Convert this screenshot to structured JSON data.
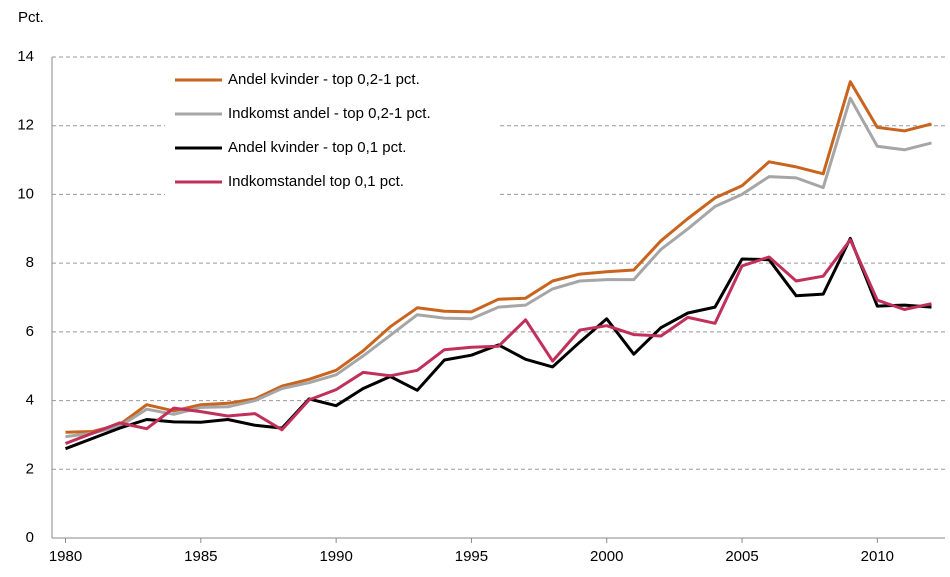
{
  "chart_data": {
    "type": "line",
    "y_label": "Pct.",
    "x": [
      1980,
      1981,
      1982,
      1983,
      1984,
      1985,
      1986,
      1987,
      1988,
      1989,
      1990,
      1991,
      1992,
      1993,
      1994,
      1995,
      1996,
      1997,
      1998,
      1999,
      2000,
      2001,
      2002,
      2003,
      2004,
      2005,
      2006,
      2007,
      2008,
      2009,
      2010,
      2011,
      2012
    ],
    "series": [
      {
        "name": "Andel kvinder - top 0,2-1 pct.",
        "color": "#c8641e",
        "values": [
          3.08,
          3.1,
          3.3,
          3.88,
          3.7,
          3.88,
          3.92,
          4.05,
          4.42,
          4.62,
          4.88,
          5.45,
          6.15,
          6.7,
          6.6,
          6.58,
          6.95,
          6.98,
          7.48,
          7.68,
          7.75,
          7.8,
          8.65,
          9.3,
          9.9,
          10.25,
          10.95,
          10.8,
          10.6,
          13.28,
          11.95,
          11.85,
          12.05
        ]
      },
      {
        "name": "Indkomst andel - top 0,2-1 pct.",
        "color": "#a6a6a6",
        "values": [
          2.95,
          3.05,
          3.25,
          3.75,
          3.6,
          3.8,
          3.82,
          4.0,
          4.35,
          4.52,
          4.75,
          5.3,
          5.9,
          6.5,
          6.4,
          6.38,
          6.72,
          6.78,
          7.25,
          7.48,
          7.52,
          7.52,
          8.4,
          9.0,
          9.65,
          10.0,
          10.52,
          10.48,
          10.2,
          12.8,
          11.4,
          11.3,
          11.5
        ]
      },
      {
        "name": "Andel kvinder - top 0,1 pct.",
        "color": "#000000",
        "values": [
          2.6,
          2.9,
          3.2,
          3.45,
          3.38,
          3.37,
          3.45,
          3.28,
          3.2,
          4.05,
          3.85,
          4.35,
          4.7,
          4.3,
          5.18,
          5.32,
          5.62,
          5.2,
          4.98,
          5.7,
          6.38,
          5.35,
          6.12,
          6.55,
          6.72,
          8.12,
          8.1,
          7.05,
          7.1,
          8.72,
          6.75,
          6.78,
          6.72
        ]
      },
      {
        "name": "Indkomstandel top 0,1 pct.",
        "color": "#c0305a",
        "values": [
          2.75,
          3.05,
          3.35,
          3.18,
          3.78,
          3.68,
          3.55,
          3.62,
          3.15,
          4.02,
          4.32,
          4.82,
          4.72,
          4.88,
          5.48,
          5.55,
          5.58,
          6.35,
          5.15,
          6.05,
          6.18,
          5.92,
          5.88,
          6.42,
          6.25,
          7.92,
          8.18,
          7.48,
          7.62,
          8.68,
          6.92,
          6.65,
          6.82
        ]
      }
    ],
    "xlim": [
      1979.5,
      2012.5
    ],
    "xticks": [
      1980,
      1985,
      1990,
      1995,
      2000,
      2005,
      2010
    ],
    "ylim": [
      0,
      14
    ],
    "yticks": [
      0,
      2,
      4,
      6,
      8,
      10,
      12,
      14
    ],
    "grid": true,
    "legend": "upper-left"
  }
}
